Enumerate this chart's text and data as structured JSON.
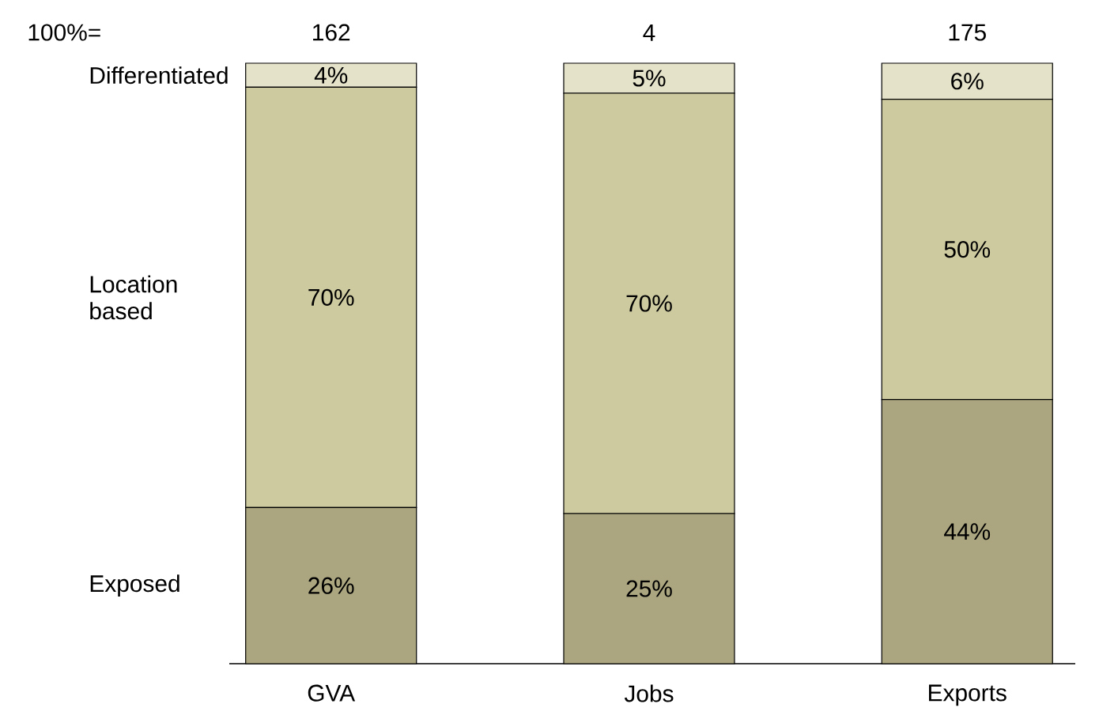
{
  "chart_data": {
    "type": "bar",
    "stacked": true,
    "categories": [
      "GVA",
      "Jobs",
      "Exports"
    ],
    "series": [
      {
        "name": "Exposed",
        "color": "#aba67f",
        "values": [
          26,
          25,
          44
        ],
        "value_labels": [
          "26%",
          "25%",
          "44%"
        ]
      },
      {
        "name": "Location based",
        "color": "#cdcaa0",
        "values": [
          70,
          70,
          50
        ],
        "value_labels": [
          "70%",
          "70%",
          "50%"
        ]
      },
      {
        "name": "Differentiated",
        "color": "#e4e2c9",
        "values": [
          4,
          5,
          6
        ],
        "value_labels": [
          "4%",
          "5%",
          "6%"
        ]
      }
    ],
    "annotations": [
      "100%=",
      "162",
      "4",
      "175"
    ],
    "legend": "left"
  }
}
